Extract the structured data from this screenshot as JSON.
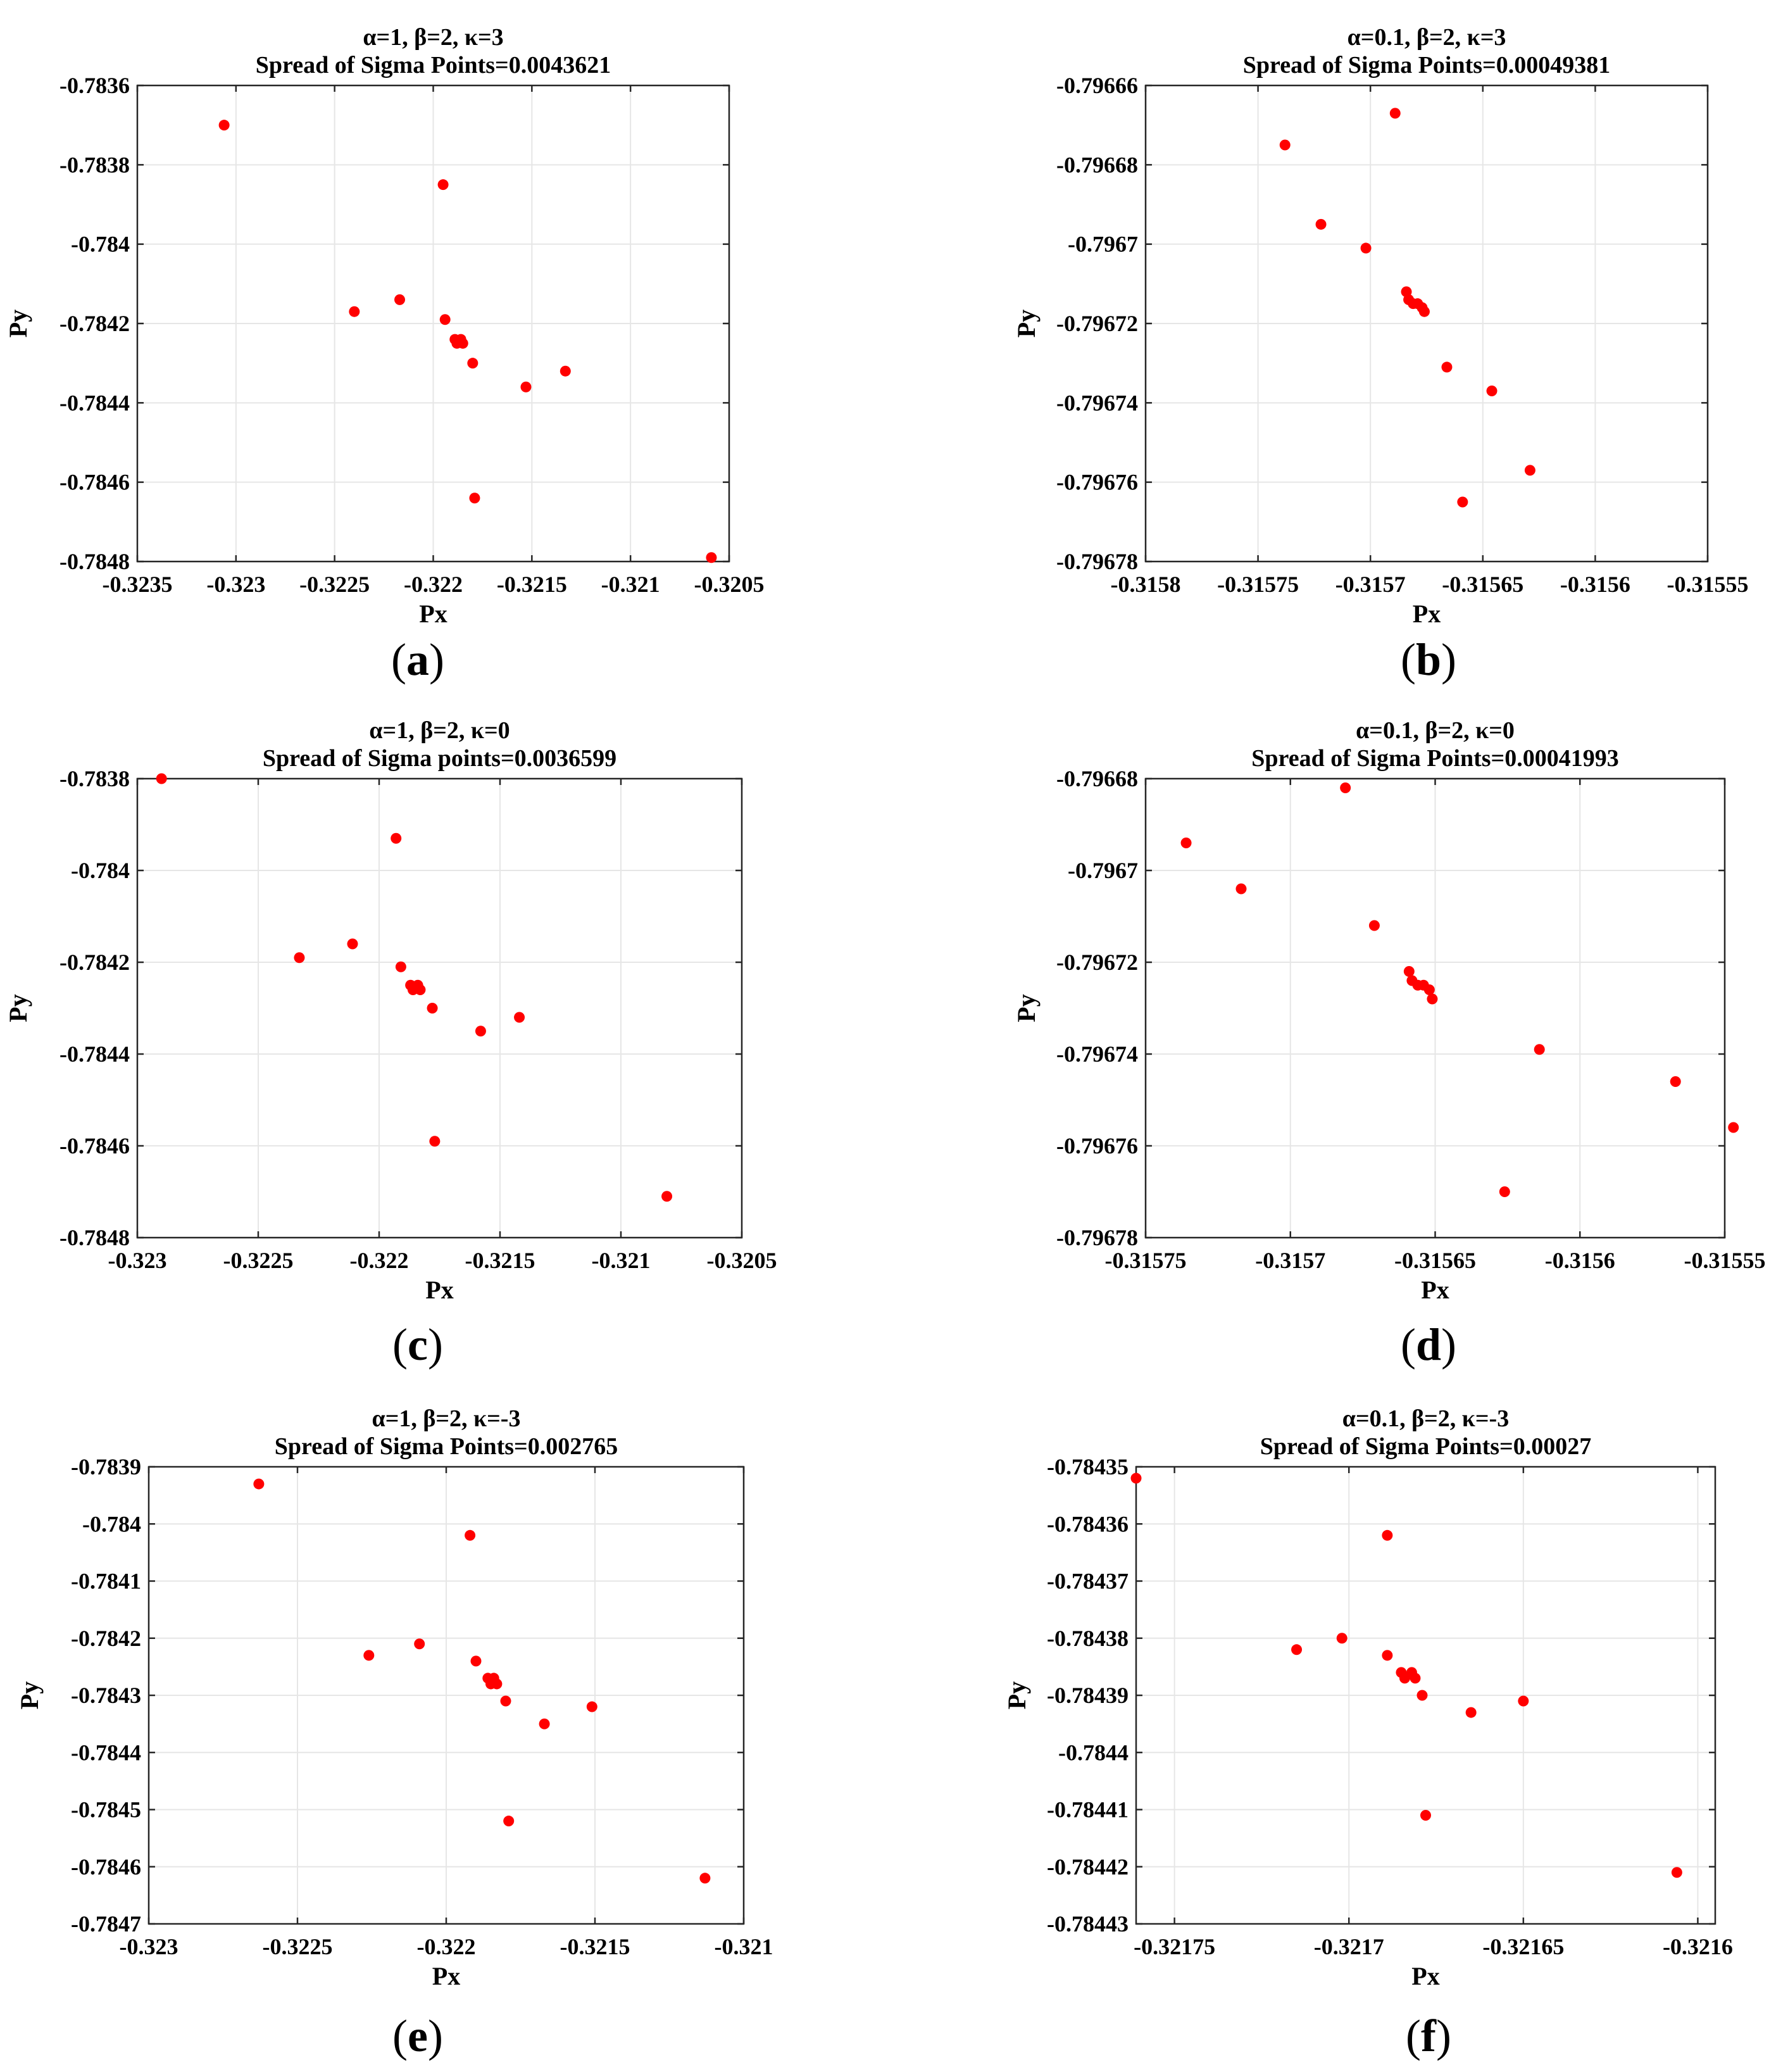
{
  "figure": {
    "point_color": "#ff0000"
  },
  "chart_data": [
    {
      "type": "scatter",
      "caption_letter": "a",
      "title_line1": "α=1, β=2, κ=3",
      "title_line2": "Spread of Sigma Points=0.0043621",
      "xlabel": "Px",
      "ylabel": "Py",
      "xlim": [
        -0.3235,
        -0.3205
      ],
      "ylim": [
        -0.7848,
        -0.7836
      ],
      "xticks": [
        -0.3235,
        -0.323,
        -0.3225,
        -0.322,
        -0.3215,
        -0.321,
        -0.3205
      ],
      "xtick_labels": [
        "-0.3235",
        "-0.323",
        "-0.3225",
        "-0.322",
        "-0.3215",
        "-0.321",
        "-0.3205"
      ],
      "yticks": [
        -0.7848,
        -0.7846,
        -0.7844,
        -0.7842,
        -0.784,
        -0.7838,
        -0.7836
      ],
      "ytick_labels": [
        "-0.7848",
        "-0.7846",
        "-0.7844",
        "-0.7842",
        "-0.784",
        "-0.7838",
        "-0.7836"
      ],
      "grid": true,
      "points": [
        [
          -0.32306,
          -0.7837
        ],
        [
          -0.32195,
          -0.78385
        ],
        [
          -0.3224,
          -0.78417
        ],
        [
          -0.32217,
          -0.78414
        ],
        [
          -0.32194,
          -0.78419
        ],
        [
          -0.32189,
          -0.78424
        ],
        [
          -0.32188,
          -0.78425
        ],
        [
          -0.32186,
          -0.78424
        ],
        [
          -0.32185,
          -0.78425
        ],
        [
          -0.3218,
          -0.7843
        ],
        [
          -0.32153,
          -0.78436
        ],
        [
          -0.32133,
          -0.78432
        ],
        [
          -0.32179,
          -0.78464
        ],
        [
          -0.32059,
          -0.78479
        ]
      ]
    },
    {
      "type": "scatter",
      "caption_letter": "b",
      "title_line1": "α=0.1, β=2, κ=3",
      "title_line2": "Spread of Sigma Points=0.00049381",
      "xlabel": "Px",
      "ylabel": "Py",
      "xlim": [
        -0.3158,
        -0.31555
      ],
      "ylim": [
        -0.79678,
        -0.79666
      ],
      "xticks": [
        -0.3158,
        -0.31575,
        -0.3157,
        -0.31565,
        -0.3156,
        -0.31555
      ],
      "xtick_labels": [
        "-0.3158",
        "-0.31575",
        "-0.3157",
        "-0.31565",
        "-0.3156",
        "-0.31555"
      ],
      "yticks": [
        -0.79678,
        -0.79676,
        -0.79674,
        -0.79672,
        -0.7967,
        -0.79668,
        -0.79666
      ],
      "ytick_labels": [
        "-0.79678",
        "-0.79676",
        "-0.79674",
        "-0.79672",
        "-0.7967",
        "-0.79668",
        "-0.79666"
      ],
      "grid": true,
      "points": [
        [
          -0.315738,
          -0.796675
        ],
        [
          -0.315722,
          -0.796695
        ],
        [
          -0.315702,
          -0.796701
        ],
        [
          -0.315689,
          -0.796667
        ],
        [
          -0.315684,
          -0.796712
        ],
        [
          -0.315683,
          -0.796714
        ],
        [
          -0.315681,
          -0.796715
        ],
        [
          -0.315679,
          -0.796715
        ],
        [
          -0.315677,
          -0.796716
        ],
        [
          -0.315676,
          -0.796717
        ],
        [
          -0.315666,
          -0.796731
        ],
        [
          -0.315646,
          -0.796737
        ],
        [
          -0.315659,
          -0.796765
        ],
        [
          -0.315629,
          -0.796757
        ]
      ]
    },
    {
      "type": "scatter",
      "caption_letter": "c",
      "title_line1": "α=1, β=2, κ=0",
      "title_line2": "Spread of Sigma points=0.0036599",
      "xlabel": "Px",
      "ylabel": "Py",
      "xlim": [
        -0.323,
        -0.3205
      ],
      "ylim": [
        -0.7848,
        -0.7838
      ],
      "xticks": [
        -0.323,
        -0.3225,
        -0.322,
        -0.3215,
        -0.321,
        -0.3205
      ],
      "xtick_labels": [
        "-0.323",
        "-0.3225",
        "-0.322",
        "-0.3215",
        "-0.321",
        "-0.3205"
      ],
      "yticks": [
        -0.7848,
        -0.7846,
        -0.7844,
        -0.7842,
        -0.784,
        -0.7838
      ],
      "ytick_labels": [
        "-0.7848",
        "-0.7846",
        "-0.7844",
        "-0.7842",
        "-0.784",
        "-0.7838"
      ],
      "grid": true,
      "points": [
        [
          -0.3229,
          -0.7838
        ],
        [
          -0.32193,
          -0.78393
        ],
        [
          -0.32233,
          -0.78419
        ],
        [
          -0.32211,
          -0.78416
        ],
        [
          -0.32191,
          -0.78421
        ],
        [
          -0.32187,
          -0.78425
        ],
        [
          -0.32186,
          -0.78426
        ],
        [
          -0.32184,
          -0.78425
        ],
        [
          -0.32183,
          -0.78426
        ],
        [
          -0.32178,
          -0.7843
        ],
        [
          -0.32158,
          -0.78435
        ],
        [
          -0.32142,
          -0.78432
        ],
        [
          -0.32177,
          -0.78459
        ],
        [
          -0.32081,
          -0.78471
        ]
      ]
    },
    {
      "type": "scatter",
      "caption_letter": "d",
      "title_line1": "α=0.1, β=2, κ=0",
      "title_line2": "Spread of Sigma Points=0.00041993",
      "xlabel": "Px",
      "ylabel": "Py",
      "xlim": [
        -0.31575,
        -0.31555
      ],
      "ylim": [
        -0.79678,
        -0.79668
      ],
      "xticks": [
        -0.31575,
        -0.3157,
        -0.31565,
        -0.3156,
        -0.31555
      ],
      "xtick_labels": [
        "-0.31575",
        "-0.3157",
        "-0.31565",
        "-0.3156",
        "-0.31555"
      ],
      "yticks": [
        -0.79678,
        -0.79676,
        -0.79674,
        -0.79672,
        -0.7967,
        -0.79668
      ],
      "ytick_labels": [
        "-0.79678",
        "-0.79676",
        "-0.79674",
        "-0.79672",
        "-0.7967",
        "-0.79668"
      ],
      "grid": true,
      "points": [
        [
          -0.315736,
          -0.796694
        ],
        [
          -0.315717,
          -0.796704
        ],
        [
          -0.315671,
          -0.796712
        ],
        [
          -0.315681,
          -0.796682
        ],
        [
          -0.315659,
          -0.796722
        ],
        [
          -0.315658,
          -0.796724
        ],
        [
          -0.315656,
          -0.796725
        ],
        [
          -0.315654,
          -0.796725
        ],
        [
          -0.315652,
          -0.796726
        ],
        [
          -0.315651,
          -0.796728
        ],
        [
          -0.315614,
          -0.796739
        ],
        [
          -0.315567,
          -0.796746
        ],
        [
          -0.315626,
          -0.79677
        ],
        [
          -0.315547,
          -0.796756
        ]
      ]
    },
    {
      "type": "scatter",
      "caption_letter": "e",
      "title_line1": "α=1, β=2, κ=-3",
      "title_line2": "Spread of Sigma Points=0.002765",
      "xlabel": "Px",
      "ylabel": "Py",
      "xlim": [
        -0.323,
        -0.321
      ],
      "ylim": [
        -0.7847,
        -0.7839
      ],
      "xticks": [
        -0.323,
        -0.3225,
        -0.322,
        -0.3215,
        -0.321
      ],
      "xtick_labels": [
        "-0.323",
        "-0.3225",
        "-0.322",
        "-0.3215",
        "-0.321"
      ],
      "yticks": [
        -0.7847,
        -0.7846,
        -0.7845,
        -0.7844,
        -0.7843,
        -0.7842,
        -0.7841,
        -0.784,
        -0.7839
      ],
      "ytick_labels": [
        "-0.7847",
        "-0.7846",
        "-0.7845",
        "-0.7844",
        "-0.7843",
        "-0.7842",
        "-0.7841",
        "-0.784",
        "-0.7839"
      ],
      "grid": true,
      "points": [
        [
          -0.32263,
          -0.78393
        ],
        [
          -0.32192,
          -0.78402
        ],
        [
          -0.32226,
          -0.78423
        ],
        [
          -0.32209,
          -0.78421
        ],
        [
          -0.3219,
          -0.78424
        ],
        [
          -0.32186,
          -0.78427
        ],
        [
          -0.32185,
          -0.78428
        ],
        [
          -0.32184,
          -0.78427
        ],
        [
          -0.32183,
          -0.78428
        ],
        [
          -0.3218,
          -0.78431
        ],
        [
          -0.32167,
          -0.78435
        ],
        [
          -0.32151,
          -0.78432
        ],
        [
          -0.32179,
          -0.78452
        ],
        [
          -0.32113,
          -0.78462
        ]
      ]
    },
    {
      "type": "scatter",
      "caption_letter": "f",
      "title_line1": "α=0.1, β=2, κ=-3",
      "title_line2": "Spread of Sigma Points=0.00027",
      "xlabel": "Px",
      "ylabel": "Py",
      "xlim": [
        -0.321761,
        -0.321595
      ],
      "ylim": [
        -0.78443,
        -0.78435
      ],
      "xticks": [
        -0.32175,
        -0.3217,
        -0.32165,
        -0.3216
      ],
      "xtick_labels": [
        "-0.32175",
        "-0.3217",
        "-0.32165",
        "-0.3216"
      ],
      "yticks": [
        -0.78443,
        -0.78442,
        -0.78441,
        -0.7844,
        -0.78439,
        -0.78438,
        -0.78437,
        -0.78436,
        -0.78435
      ],
      "ytick_labels": [
        "-0.78443",
        "-0.78442",
        "-0.78441",
        "-0.7844",
        "-0.78439",
        "-0.78438",
        "-0.78437",
        "-0.78436",
        "-0.78435"
      ],
      "grid": true,
      "points": [
        [
          -0.321761,
          -0.784352
        ],
        [
          -0.321689,
          -0.784362
        ],
        [
          -0.321715,
          -0.784382
        ],
        [
          -0.321702,
          -0.78438
        ],
        [
          -0.321689,
          -0.784383
        ],
        [
          -0.321685,
          -0.784386
        ],
        [
          -0.321684,
          -0.784387
        ],
        [
          -0.321682,
          -0.784386
        ],
        [
          -0.321681,
          -0.784387
        ],
        [
          -0.321679,
          -0.78439
        ],
        [
          -0.321665,
          -0.784393
        ],
        [
          -0.32165,
          -0.784391
        ],
        [
          -0.321678,
          -0.784411
        ],
        [
          -0.321606,
          -0.784421
        ]
      ]
    }
  ]
}
